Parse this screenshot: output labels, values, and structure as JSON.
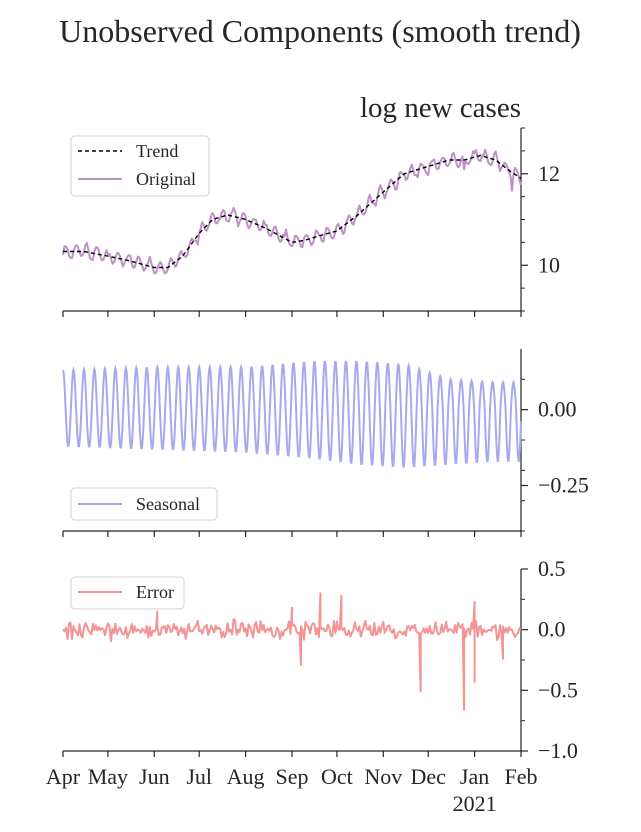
{
  "figure_title": "Unobserved Components (smooth trend)",
  "colors": {
    "trend": "#000000",
    "original": "#c090c8",
    "seasonal": "#a8a8f0",
    "error": "#f49494",
    "axis": "#262626"
  },
  "chart_data": [
    {
      "type": "line",
      "title": "log new cases",
      "xlabel": "",
      "ylabel": "",
      "ylim": [
        9.0,
        13.0
      ],
      "y_ticks": [
        10,
        12
      ],
      "y_tick_labels": [
        "10",
        "12"
      ],
      "legend": {
        "position": "top-left",
        "entries": [
          "Trend",
          "Original"
        ]
      },
      "grid": false,
      "series": [
        {
          "name": "Trend",
          "style": "dashed",
          "x": [
            "2020-04-01",
            "2020-04-15",
            "2020-05-01",
            "2020-05-15",
            "2020-06-01",
            "2020-06-10",
            "2020-06-20",
            "2020-07-01",
            "2020-07-10",
            "2020-07-20",
            "2020-08-01",
            "2020-08-15",
            "2020-09-01",
            "2020-09-10",
            "2020-09-20",
            "2020-10-01",
            "2020-10-15",
            "2020-11-01",
            "2020-11-15",
            "2020-11-25",
            "2020-12-05",
            "2020-12-15",
            "2020-12-25",
            "2021-01-05",
            "2021-01-15",
            "2021-01-25",
            "2021-02-01"
          ],
          "values": [
            10.3,
            10.3,
            10.2,
            10.1,
            9.95,
            9.95,
            10.2,
            10.7,
            11.0,
            11.1,
            11.0,
            10.8,
            10.5,
            10.55,
            10.65,
            10.75,
            11.1,
            11.6,
            12.0,
            12.1,
            12.2,
            12.3,
            12.3,
            12.4,
            12.3,
            12.05,
            11.9
          ]
        },
        {
          "name": "Original",
          "style": "solid",
          "x": [
            "2020-04-01",
            "2020-04-15",
            "2020-05-01",
            "2020-05-15",
            "2020-06-01",
            "2020-06-10",
            "2020-06-20",
            "2020-07-01",
            "2020-07-10",
            "2020-07-20",
            "2020-08-01",
            "2020-08-15",
            "2020-09-01",
            "2020-09-10",
            "2020-09-20",
            "2020-10-01",
            "2020-10-15",
            "2020-11-01",
            "2020-11-15",
            "2020-11-25",
            "2020-12-05",
            "2020-12-15",
            "2020-12-25",
            "2021-01-05",
            "2021-01-15",
            "2021-01-25",
            "2021-02-01"
          ],
          "values": [
            10.3,
            10.3,
            10.2,
            10.1,
            9.95,
            9.95,
            10.2,
            10.7,
            11.0,
            11.1,
            11.0,
            10.8,
            10.5,
            10.55,
            10.65,
            10.75,
            11.1,
            11.6,
            12.0,
            12.1,
            12.2,
            12.3,
            12.3,
            12.4,
            12.3,
            12.05,
            11.9
          ],
          "weekly_amplitude": 0.13
        }
      ]
    },
    {
      "type": "line",
      "xlabel": "",
      "ylabel": "",
      "ylim": [
        -0.4,
        0.2
      ],
      "y_ticks": [
        0.0,
        -0.25
      ],
      "y_tick_labels": [
        "0.00",
        "−0.25"
      ],
      "legend": {
        "position": "bottom-left",
        "entries": [
          "Seasonal"
        ]
      },
      "grid": false,
      "series": [
        {
          "name": "Seasonal",
          "period_days": 7,
          "x": [
            "2020-04-01",
            "2020-06-01",
            "2020-08-01",
            "2020-09-15",
            "2020-10-15",
            "2020-11-15",
            "2020-12-15",
            "2021-01-15",
            "2021-02-01"
          ],
          "max": [
            0.13,
            0.14,
            0.14,
            0.16,
            0.16,
            0.15,
            0.1,
            0.09,
            0.09
          ],
          "min": [
            -0.12,
            -0.13,
            -0.14,
            -0.16,
            -0.18,
            -0.19,
            -0.18,
            -0.17,
            -0.17
          ]
        }
      ]
    },
    {
      "type": "line",
      "xlabel": "",
      "ylabel": "",
      "ylim": [
        -1.0,
        0.5
      ],
      "y_ticks": [
        0.5,
        0.0,
        -0.5,
        -1.0
      ],
      "y_tick_labels": [
        "0.5",
        "0.0",
        "−0.5",
        "−1.0"
      ],
      "legend": {
        "position": "top-left",
        "entries": [
          "Error"
        ]
      },
      "grid": false,
      "series": [
        {
          "name": "Error",
          "noise_std": 0.05,
          "spikes": [
            {
              "x": "2020-06-03",
              "y": 0.15
            },
            {
              "x": "2020-09-01",
              "y": 0.18
            },
            {
              "x": "2020-09-07",
              "y": -0.29
            },
            {
              "x": "2020-09-20",
              "y": 0.3
            },
            {
              "x": "2020-10-04",
              "y": 0.28
            },
            {
              "x": "2020-11-26",
              "y": -0.51
            },
            {
              "x": "2020-12-25",
              "y": -0.66
            },
            {
              "x": "2021-01-01",
              "y": 0.23
            },
            {
              "x": "2021-01-01",
              "y": -0.43
            },
            {
              "x": "2021-01-20",
              "y": -0.24
            }
          ]
        }
      ]
    }
  ],
  "x_axis": {
    "range": [
      "2020-04-01",
      "2021-02-01"
    ],
    "ticks": [
      "2020-04-01",
      "2020-05-01",
      "2020-06-01",
      "2020-07-01",
      "2020-08-01",
      "2020-09-01",
      "2020-10-01",
      "2020-11-01",
      "2020-12-01",
      "2021-01-01",
      "2021-02-01"
    ],
    "tick_labels": [
      "Apr",
      "May",
      "Jun",
      "Jul",
      "Aug",
      "Sep",
      "Oct",
      "Nov",
      "Dec",
      "Jan",
      "Feb"
    ],
    "year_label": "2021"
  }
}
